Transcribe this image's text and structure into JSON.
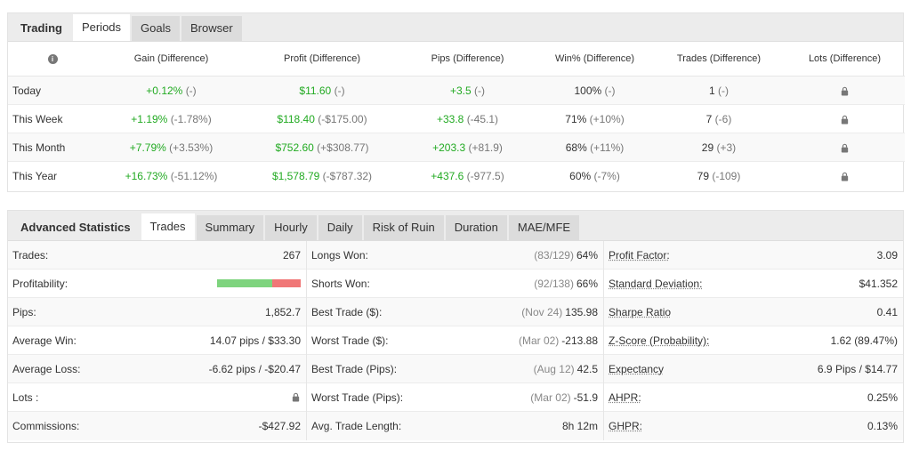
{
  "periods_panel": {
    "tabs": [
      "Trading",
      "Periods",
      "Goals",
      "Browser"
    ],
    "columns": [
      "Gain (Difference)",
      "Profit (Difference)",
      "Pips (Difference)",
      "Win% (Difference)",
      "Trades (Difference)",
      "Lots (Difference)"
    ],
    "rows": [
      {
        "label": "Today",
        "gain": "+0.12%",
        "gain_diff": "(-)",
        "profit": "$11.60",
        "profit_diff": "(-)",
        "pips": "+3.5",
        "pips_diff": "(-)",
        "win": "100%",
        "win_diff": "(-)",
        "trades": "1",
        "trades_diff": "(-)"
      },
      {
        "label": "This Week",
        "gain": "+1.19%",
        "gain_diff": "(-1.78%)",
        "profit": "$118.40",
        "profit_diff": "(-$175.00)",
        "pips": "+33.8",
        "pips_diff": "(-45.1)",
        "win": "71%",
        "win_diff": "(+10%)",
        "trades": "7",
        "trades_diff": "(-6)"
      },
      {
        "label": "This Month",
        "gain": "+7.79%",
        "gain_diff": "(+3.53%)",
        "profit": "$752.60",
        "profit_diff": "(+$308.77)",
        "pips": "+203.3",
        "pips_diff": "(+81.9)",
        "win": "68%",
        "win_diff": "(+11%)",
        "trades": "29",
        "trades_diff": "(+3)"
      },
      {
        "label": "This Year",
        "gain": "+16.73%",
        "gain_diff": "(-51.12%)",
        "profit": "$1,578.79",
        "profit_diff": "(-$787.32)",
        "pips": "+437.6",
        "pips_diff": "(-977.5)",
        "win": "60%",
        "win_diff": "(-7%)",
        "trades": "79",
        "trades_diff": "(-109)"
      }
    ]
  },
  "stats_panel": {
    "title": "Advanced Statistics",
    "tabs": [
      "Trades",
      "Summary",
      "Hourly",
      "Daily",
      "Risk of Ruin",
      "Duration",
      "MAE/MFE"
    ],
    "col1": [
      {
        "label": "Trades:",
        "value": "267"
      },
      {
        "label": "Profitability:",
        "value": ""
      },
      {
        "label": "Pips:",
        "value": "1,852.7"
      },
      {
        "label": "Average Win:",
        "value": "14.07 pips / $33.30"
      },
      {
        "label": "Average Loss:",
        "value": "-6.62 pips / -$20.47"
      },
      {
        "label": "Lots :",
        "value": ""
      },
      {
        "label": "Commissions:",
        "value": "-$427.92"
      }
    ],
    "profitability_win_fraction": 0.66,
    "col2": [
      {
        "label": "Longs Won:",
        "sub": "(83/129)",
        "value": "64%"
      },
      {
        "label": "Shorts Won:",
        "sub": "(92/138)",
        "value": "66%"
      },
      {
        "label": "Best Trade ($):",
        "sub": "(Nov 24)",
        "value": "135.98"
      },
      {
        "label": "Worst Trade ($):",
        "sub": "(Mar 02)",
        "value": "-213.88"
      },
      {
        "label": "Best Trade (Pips):",
        "sub": "(Aug 12)",
        "value": "42.5"
      },
      {
        "label": "Worst Trade (Pips):",
        "sub": "(Mar 02)",
        "value": "-51.9"
      },
      {
        "label": "Avg. Trade Length:",
        "sub": "",
        "value": "8h 12m"
      }
    ],
    "col3": [
      {
        "label": "Profit Factor:",
        "value": "3.09"
      },
      {
        "label": "Standard Deviation:",
        "value": "$41.352"
      },
      {
        "label": "Sharpe Ratio",
        "value": "0.41"
      },
      {
        "label": "Z-Score (Probability):",
        "value": "1.62 (89.47%)"
      },
      {
        "label": "Expectancy",
        "value": "6.9 Pips / $14.77"
      },
      {
        "label": "AHPR:",
        "value": "0.25%"
      },
      {
        "label": "GHPR:",
        "value": "0.13%"
      }
    ]
  },
  "colors": {
    "positive": "#22aa22",
    "win_bar": "#7ed47e",
    "loss_bar": "#f07777"
  }
}
